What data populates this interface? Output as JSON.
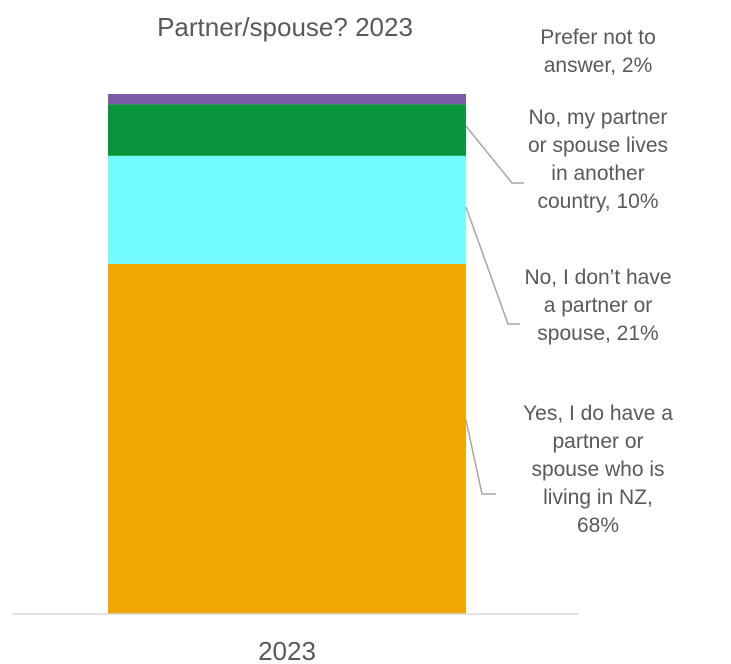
{
  "chart_data": {
    "type": "bar",
    "stacked": true,
    "title": "Partner/spouse? 2023",
    "categories": [
      "2023"
    ],
    "ylim": [
      0,
      100
    ],
    "unit": "%",
    "series": [
      {
        "name": "Yes, I do have a partner or spouse who is living in NZ, 68%",
        "label_lines": [
          "Yes, I do have a",
          "partner or",
          "spouse who is",
          "living in NZ,",
          "68%"
        ],
        "values": [
          68
        ],
        "color": "#F2A600"
      },
      {
        "name": "No, I don’t have a partner or spouse, 21%",
        "label_lines": [
          "No, I don’t have",
          "a partner or",
          "spouse, 21%"
        ],
        "values": [
          21
        ],
        "color": "#73FCFF"
      },
      {
        "name": "No, my partner or spouse lives in another country, 10%",
        "label_lines": [
          "No, my partner",
          "or spouse lives",
          "in another",
          "country, 10%"
        ],
        "values": [
          10
        ],
        "color": "#09953C"
      },
      {
        "name": "Prefer not to answer, 2%",
        "label_lines": [
          "Prefer not to",
          "answer, 2%"
        ],
        "values": [
          2
        ],
        "color": "#7B5AA6"
      }
    ],
    "colors": {
      "text": "#595959",
      "axis": "#D9D9D9",
      "leader": "#A6A6A6"
    },
    "grid": false,
    "legend": "none (data labels at right)"
  }
}
